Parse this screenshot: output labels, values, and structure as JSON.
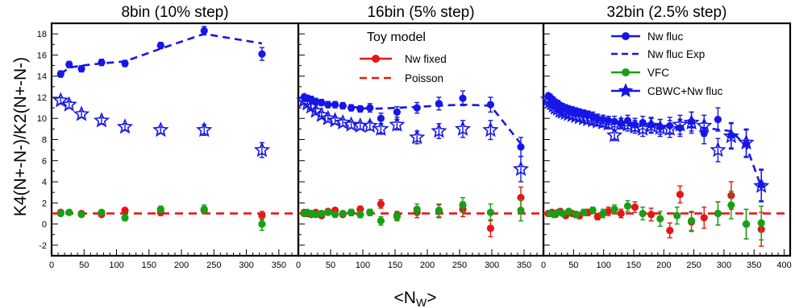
{
  "figure": {
    "xlabel": "<N",
    "xlabel_sub": "W",
    "xlabel_end": ">",
    "ylabel": "K4(N+-N-)/K2(N+-N-)"
  },
  "colors": {
    "nw_fluc": "#1616e6",
    "nw_fixed": "#e61616",
    "vfc": "#16a016",
    "poisson": "#e61616",
    "cbwc": "#1616e6"
  },
  "legends": {
    "left_header": "Toy model",
    "left_items": [
      {
        "key": "nw_fixed",
        "label": "Nw fixed",
        "style": "circle"
      },
      {
        "key": "poisson",
        "label": "Poisson",
        "style": "dashed"
      }
    ],
    "right_items": [
      {
        "key": "nw_fluc",
        "label": "Nw fluc",
        "style": "circle"
      },
      {
        "key": "nw_fluc_exp",
        "label": "Nw fluc Exp",
        "style": "dashed"
      },
      {
        "key": "vfc",
        "label": "VFC",
        "style": "circle"
      },
      {
        "key": "cbwc",
        "label": "CBWC+Nw fluc",
        "style": "star"
      }
    ]
  },
  "chart_data": [
    {
      "type": "scatter",
      "title": "8bin (10% step)",
      "xlim": [
        0,
        380
      ],
      "ylim": [
        -3,
        19
      ],
      "xticks": [
        0,
        50,
        100,
        150,
        200,
        250,
        300,
        350
      ],
      "yticks": [
        -2,
        0,
        2,
        4,
        6,
        8,
        10,
        12,
        14,
        16,
        18
      ],
      "reference_line": {
        "name": "Poisson",
        "y": 1
      },
      "series": [
        {
          "name": "Nw fluc",
          "marker": "circle",
          "x": [
            14,
            27,
            46,
            77,
            113,
            168,
            235,
            324
          ],
          "y": [
            14.2,
            15.1,
            14.7,
            15.3,
            15.2,
            16.9,
            18.3,
            16.1
          ],
          "err": [
            0.3,
            0.3,
            0.3,
            0.3,
            0.3,
            0.3,
            0.4,
            0.6
          ]
        },
        {
          "name": "Nw fluc Exp",
          "marker": "dashed",
          "x": [
            14,
            27,
            46,
            77,
            113,
            168,
            235,
            324
          ],
          "y": [
            14.2,
            14.8,
            15.0,
            15.2,
            15.4,
            16.6,
            18.0,
            17.1
          ]
        },
        {
          "name": "Nw fixed",
          "marker": "circle",
          "x": [
            14,
            27,
            46,
            77,
            113,
            168,
            235,
            324
          ],
          "y": [
            1.1,
            1.1,
            1.0,
            0.9,
            1.3,
            1.1,
            1.3,
            0.8
          ],
          "err": [
            0.2,
            0.2,
            0.2,
            0.2,
            0.2,
            0.3,
            0.3,
            0.4
          ]
        },
        {
          "name": "VFC",
          "marker": "circle",
          "x": [
            14,
            27,
            46,
            77,
            113,
            168,
            235,
            324
          ],
          "y": [
            1.0,
            1.1,
            0.9,
            1.1,
            0.6,
            1.4,
            1.4,
            0.0
          ],
          "err": [
            0.2,
            0.2,
            0.2,
            0.2,
            0.3,
            0.3,
            0.4,
            0.6
          ]
        },
        {
          "name": "CBWC+Nw fluc",
          "marker": "star",
          "x": [
            14,
            27,
            46,
            77,
            113,
            168,
            235,
            324
          ],
          "y": [
            11.7,
            11.3,
            10.4,
            9.8,
            9.2,
            8.9,
            8.9,
            7.0
          ],
          "err": [
            0.3,
            0.3,
            0.3,
            0.3,
            0.3,
            0.3,
            0.5,
            0.7
          ]
        }
      ]
    },
    {
      "type": "scatter",
      "title": "16bin (5% step)",
      "xlim": [
        0,
        380
      ],
      "ylim": [
        -3,
        19
      ],
      "xticks": [
        0,
        50,
        100,
        150,
        200,
        250,
        300,
        350
      ],
      "yticks": [
        -2,
        0,
        2,
        4,
        6,
        8,
        10,
        12,
        14,
        16,
        18
      ],
      "reference_line": {
        "name": "Poisson",
        "y": 1
      },
      "series": [
        {
          "name": "Nw fluc",
          "marker": "circle",
          "x": [
            9,
            14,
            20,
            27,
            36,
            46,
            57,
            69,
            82,
            96,
            111,
            128,
            153,
            184,
            218,
            255,
            298,
            345
          ],
          "y": [
            12.0,
            11.9,
            11.8,
            11.6,
            11.5,
            11.3,
            11.3,
            11.2,
            11.0,
            10.9,
            11.0,
            10.0,
            10.6,
            11.0,
            11.4,
            11.9,
            11.3,
            7.3
          ],
          "err": [
            0.3,
            0.3,
            0.3,
            0.3,
            0.3,
            0.3,
            0.3,
            0.3,
            0.3,
            0.3,
            0.4,
            0.5,
            0.5,
            0.5,
            0.6,
            0.7,
            0.7,
            0.9
          ]
        },
        {
          "name": "Nw fluc Exp",
          "marker": "dashed",
          "x": [
            9,
            20,
            36,
            57,
            82,
            111,
            153,
            218,
            255,
            298,
            345
          ],
          "y": [
            12.0,
            11.8,
            11.5,
            11.3,
            11.1,
            10.9,
            11.0,
            11.2,
            11.3,
            11.2,
            7.6
          ]
        },
        {
          "name": "Nw fixed",
          "marker": "circle",
          "x": [
            9,
            14,
            20,
            27,
            36,
            46,
            57,
            69,
            82,
            96,
            111,
            128,
            153,
            184,
            218,
            255,
            298,
            345
          ],
          "y": [
            1.1,
            1.0,
            0.9,
            1.1,
            0.8,
            1.2,
            1.3,
            0.9,
            1.1,
            1.4,
            1.1,
            1.9,
            0.8,
            1.1,
            1.2,
            1.4,
            -0.4,
            2.5
          ],
          "err": [
            0.2,
            0.2,
            0.2,
            0.2,
            0.2,
            0.2,
            0.2,
            0.2,
            0.3,
            0.3,
            0.3,
            0.4,
            0.4,
            0.5,
            0.6,
            0.7,
            0.8,
            1.0
          ]
        },
        {
          "name": "VFC",
          "marker": "circle",
          "x": [
            9,
            14,
            20,
            27,
            36,
            46,
            57,
            69,
            82,
            96,
            111,
            128,
            153,
            184,
            218,
            255,
            298,
            345
          ],
          "y": [
            1.0,
            1.1,
            1.0,
            0.9,
            1.0,
            1.1,
            0.9,
            1.0,
            1.1,
            0.9,
            1.1,
            0.3,
            0.7,
            1.4,
            1.3,
            1.8,
            1.1,
            1.3
          ],
          "err": [
            0.2,
            0.2,
            0.2,
            0.2,
            0.2,
            0.2,
            0.2,
            0.2,
            0.3,
            0.3,
            0.3,
            0.4,
            0.4,
            0.5,
            0.6,
            0.7,
            0.8,
            1.0
          ]
        },
        {
          "name": "CBWC+Nw fluc",
          "marker": "star",
          "x": [
            9,
            14,
            20,
            27,
            36,
            46,
            57,
            69,
            82,
            96,
            111,
            128,
            153,
            184,
            218,
            255,
            298,
            345
          ],
          "y": [
            11.7,
            11.4,
            11.1,
            10.7,
            10.3,
            10.0,
            9.8,
            9.6,
            9.4,
            9.3,
            9.3,
            9.0,
            9.4,
            8.2,
            8.8,
            9.0,
            8.9,
            5.2
          ],
          "err": [
            0.3,
            0.3,
            0.3,
            0.3,
            0.3,
            0.3,
            0.3,
            0.3,
            0.3,
            0.3,
            0.4,
            0.5,
            0.5,
            0.6,
            0.7,
            0.8,
            0.9,
            1.2
          ]
        }
      ]
    },
    {
      "type": "scatter",
      "title": "32bin (2.5% step)",
      "xlim": [
        0,
        410
      ],
      "ylim": [
        -3,
        19
      ],
      "xticks": [
        0,
        50,
        100,
        150,
        200,
        250,
        300,
        350,
        400
      ],
      "yticks": [
        -2,
        0,
        2,
        4,
        6,
        8,
        10,
        12,
        14,
        16,
        18
      ],
      "reference_line": {
        "name": "Poisson",
        "y": 1
      },
      "series": [
        {
          "name": "Nw fluc",
          "marker": "circle",
          "x": [
            8,
            11,
            14,
            17,
            20,
            24,
            28,
            32,
            37,
            42,
            48,
            54,
            60,
            67,
            74,
            82,
            90,
            99,
            108,
            118,
            129,
            140,
            152,
            165,
            179,
            194,
            210,
            227,
            246,
            267,
            290,
            312,
            337,
            362
          ],
          "y": [
            12.1,
            12.0,
            11.8,
            11.6,
            11.5,
            11.4,
            11.2,
            11.1,
            11.0,
            10.9,
            10.8,
            10.7,
            10.6,
            10.5,
            10.4,
            10.2,
            10.0,
            9.9,
            9.8,
            9.7,
            9.5,
            9.8,
            9.4,
            9.6,
            9.4,
            9.2,
            9.3,
            9.1,
            9.7,
            8.6,
            9.9,
            8.4,
            7.6,
            3.7
          ],
          "err": [
            0.3,
            0.3,
            0.3,
            0.3,
            0.3,
            0.3,
            0.3,
            0.3,
            0.3,
            0.3,
            0.3,
            0.3,
            0.3,
            0.3,
            0.3,
            0.4,
            0.4,
            0.4,
            0.4,
            0.5,
            0.5,
            0.5,
            0.6,
            0.6,
            0.7,
            0.7,
            0.8,
            0.8,
            0.9,
            1.0,
            1.1,
            1.2,
            1.3,
            1.5
          ]
        },
        {
          "name": "Nw fluc Exp",
          "marker": "dashed",
          "x": [
            8,
            20,
            37,
            60,
            90,
            129,
            179,
            227,
            267,
            312,
            337,
            362
          ],
          "y": [
            12.0,
            11.6,
            11.1,
            10.6,
            10.0,
            9.6,
            9.4,
            9.2,
            9.1,
            8.8,
            7.4,
            3.5
          ]
        },
        {
          "name": "Nw fixed",
          "marker": "circle",
          "x": [
            8,
            14,
            20,
            28,
            37,
            48,
            60,
            74,
            90,
            108,
            129,
            152,
            179,
            210,
            227,
            246,
            267,
            290,
            312,
            337,
            362
          ],
          "y": [
            1.0,
            1.1,
            0.9,
            1.2,
            0.8,
            1.0,
            0.8,
            1.1,
            0.7,
            1.2,
            1.0,
            1.6,
            0.9,
            -0.6,
            2.8,
            0.2,
            0.6,
            1.0,
            2.7,
            0.0,
            -0.5
          ],
          "err": [
            0.2,
            0.2,
            0.2,
            0.2,
            0.2,
            0.2,
            0.3,
            0.3,
            0.3,
            0.4,
            0.4,
            0.5,
            0.6,
            0.7,
            0.8,
            0.9,
            1.0,
            1.1,
            1.3,
            1.4,
            1.6
          ]
        },
        {
          "name": "VFC",
          "marker": "circle",
          "x": [
            11,
            17,
            24,
            32,
            42,
            54,
            67,
            82,
            99,
            118,
            140,
            165,
            194,
            222,
            246,
            290,
            312,
            337,
            362
          ],
          "y": [
            1.0,
            0.9,
            1.1,
            1.0,
            1.2,
            0.9,
            1.1,
            1.3,
            1.0,
            1.4,
            1.7,
            1.0,
            0.5,
            0.8,
            0.3,
            1.0,
            1.8,
            0.0,
            0.1
          ],
          "err": [
            0.2,
            0.2,
            0.2,
            0.2,
            0.2,
            0.3,
            0.3,
            0.3,
            0.4,
            0.4,
            0.5,
            0.6,
            0.7,
            0.8,
            0.9,
            1.1,
            1.3,
            1.4,
            1.6
          ]
        },
        {
          "name": "CBWC+Nw fluc",
          "marker": "star",
          "x": [
            8,
            11,
            14,
            17,
            20,
            24,
            28,
            32,
            37,
            42,
            48,
            54,
            60,
            67,
            74,
            82,
            90,
            99,
            108,
            118,
            129,
            140,
            152,
            165,
            179,
            194,
            210,
            227,
            246,
            267,
            290,
            312,
            337,
            362
          ],
          "y": [
            11.8,
            11.6,
            11.4,
            11.2,
            11.0,
            10.9,
            10.7,
            10.6,
            10.5,
            10.4,
            10.3,
            10.2,
            10.1,
            10.0,
            9.9,
            9.8,
            9.7,
            9.6,
            9.5,
            8.4,
            9.5,
            9.4,
            9.2,
            9.0,
            9.3,
            9.1,
            9.0,
            9.4,
            9.6,
            9.3,
            7.0,
            8.3,
            7.7,
            3.6
          ],
          "err": [
            0.3,
            0.3,
            0.3,
            0.3,
            0.3,
            0.3,
            0.3,
            0.3,
            0.3,
            0.3,
            0.3,
            0.3,
            0.3,
            0.3,
            0.4,
            0.4,
            0.4,
            0.4,
            0.5,
            0.5,
            0.5,
            0.6,
            0.6,
            0.7,
            0.7,
            0.8,
            0.8,
            0.9,
            1.0,
            1.0,
            1.1,
            1.2,
            1.3,
            1.5
          ]
        }
      ]
    }
  ]
}
